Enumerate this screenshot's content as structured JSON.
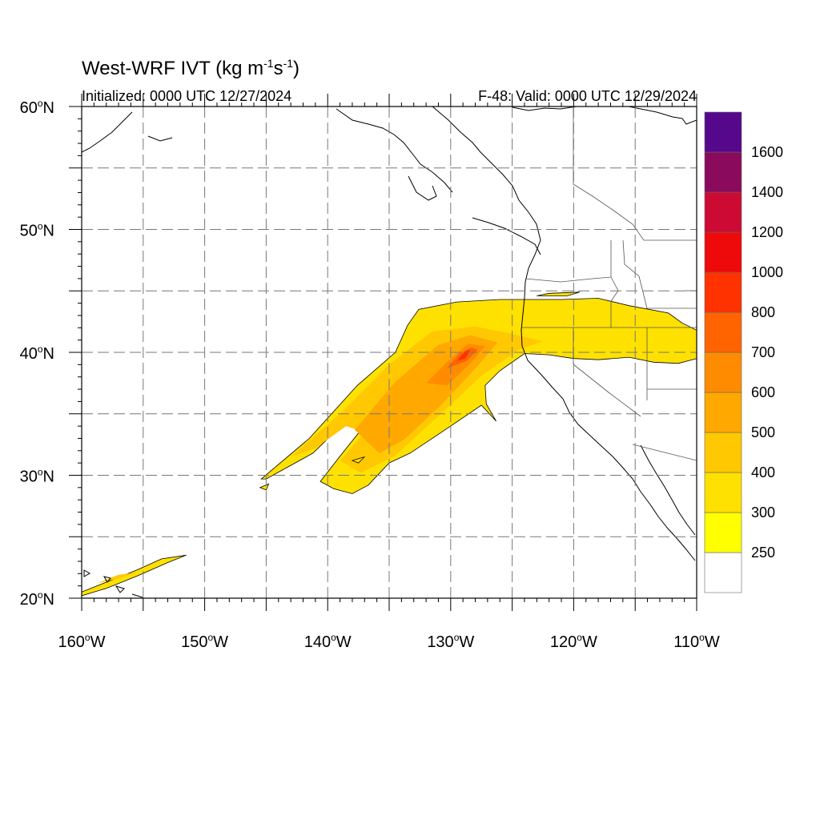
{
  "title": {
    "main": "West-WRF IVT (kg m",
    "exp1": "-1",
    "mid": "s",
    "exp2": "-1",
    "end": ")"
  },
  "initialized": "Initialized: 0000 UTC 12/27/2024",
  "valid": "F-48: Valid: 0000 UTC 12/29/2024",
  "lat_ticks": [
    {
      "value": 60,
      "label": "60"
    },
    {
      "value": 50,
      "label": "50"
    },
    {
      "value": 40,
      "label": "40"
    },
    {
      "value": 30,
      "label": "30"
    },
    {
      "value": 20,
      "label": "20"
    }
  ],
  "lon_ticks": [
    {
      "value": -160,
      "label": "160"
    },
    {
      "value": -150,
      "label": "150"
    },
    {
      "value": -140,
      "label": "140"
    },
    {
      "value": -130,
      "label": "130"
    },
    {
      "value": -120,
      "label": "120"
    },
    {
      "value": -110,
      "label": "110"
    }
  ],
  "lat_suffix": "N",
  "lon_suffix": "W",
  "degree_symbol": "o",
  "chart_data": {
    "type": "heatmap",
    "lon_range": [
      -160,
      -110
    ],
    "lat_range": [
      20,
      60
    ],
    "grid_spacing_deg": 5,
    "grid": true,
    "legend_placement": "right",
    "colorbar": {
      "levels": [
        250,
        300,
        400,
        500,
        600,
        700,
        800,
        1000,
        1200,
        1400,
        1600
      ],
      "labels": [
        "250",
        "300",
        "400",
        "500",
        "600",
        "700",
        "800",
        "1000",
        "1200",
        "1400",
        "1600"
      ],
      "colors": [
        "#ffffff",
        "#ffff00",
        "#ffe100",
        "#ffc800",
        "#ffa800",
        "#ff8c00",
        "#ff6400",
        "#ff3200",
        "#ee0a0a",
        "#cc0a33",
        "#8a0a5c",
        "#55088c"
      ]
    },
    "fill_regions": [
      {
        "name": "ar-300",
        "level": 300,
        "polygon": [
          [
            -145.4,
            29.7
          ],
          [
            -141.5,
            33
          ],
          [
            -137.6,
            37.3
          ],
          [
            -134.5,
            40
          ],
          [
            -133.5,
            42.2
          ],
          [
            -132.6,
            43.5
          ],
          [
            -129.5,
            44.1
          ],
          [
            -126,
            44.3
          ],
          [
            -121,
            44.3
          ],
          [
            -118,
            44.4
          ],
          [
            -115.5,
            43.8
          ],
          [
            -112.3,
            43.2
          ],
          [
            -111.2,
            42.4
          ],
          [
            -110,
            41.8
          ],
          [
            -110,
            39.5
          ],
          [
            -111.5,
            39.1
          ],
          [
            -113.5,
            39.2
          ],
          [
            -115.5,
            39.6
          ],
          [
            -118,
            39.4
          ],
          [
            -120,
            39.5
          ],
          [
            -122,
            39.8
          ],
          [
            -124,
            39.9
          ],
          [
            -126,
            38.5
          ],
          [
            -127.2,
            37.3
          ],
          [
            -127.1,
            35.8
          ],
          [
            -126.3,
            34.4
          ],
          [
            -127.5,
            35.7
          ],
          [
            -130,
            34
          ],
          [
            -133.3,
            31.8
          ],
          [
            -135,
            31
          ],
          [
            -136.7,
            29.2
          ],
          [
            -138,
            28.5
          ],
          [
            -139.5,
            28.9
          ],
          [
            -140.6,
            29.5
          ],
          [
            -138.8,
            31.8
          ],
          [
            -136.4,
            34.8
          ],
          [
            -137.6,
            35.3
          ],
          [
            -141.2,
            31.8
          ],
          [
            -145,
            29.7
          ]
        ]
      },
      {
        "name": "ar-400",
        "level": 400,
        "polygon": [
          [
            -143,
            31.5
          ],
          [
            -139,
            35
          ],
          [
            -135,
            39
          ],
          [
            -131.5,
            41.7
          ],
          [
            -128,
            42.1
          ],
          [
            -125,
            41.5
          ],
          [
            -122.5,
            40.9
          ],
          [
            -124.5,
            40.2
          ],
          [
            -127.5,
            38.1
          ],
          [
            -131,
            34.8
          ],
          [
            -134.5,
            31.6
          ],
          [
            -137.3,
            30.2
          ],
          [
            -139,
            31.2
          ],
          [
            -137,
            33.5
          ],
          [
            -138.5,
            34
          ],
          [
            -141,
            32.2
          ]
        ]
      },
      {
        "name": "ar-500",
        "level": 500,
        "polygon": [
          [
            -137.8,
            33.7
          ],
          [
            -134.5,
            37.6
          ],
          [
            -131,
            40.6
          ],
          [
            -128.4,
            41.4
          ],
          [
            -126.2,
            40.8
          ],
          [
            -127.8,
            38.9
          ],
          [
            -130.8,
            35.7
          ],
          [
            -133.8,
            32.9
          ],
          [
            -135.8,
            31.8
          ]
        ]
      },
      {
        "name": "ar-600",
        "level": 600,
        "polygon": [
          [
            -132,
            37.5
          ],
          [
            -130.3,
            39.2
          ],
          [
            -128.6,
            40.7
          ],
          [
            -127.2,
            40.5
          ],
          [
            -128.4,
            39.1
          ],
          [
            -130.3,
            37.3
          ]
        ]
      },
      {
        "name": "ar-700",
        "level": 700,
        "polygon": [
          [
            -130.3,
            38.7
          ],
          [
            -129.3,
            39.9
          ],
          [
            -128.3,
            40.4
          ],
          [
            -127.8,
            40.2
          ],
          [
            -128.7,
            39.3
          ]
        ]
      },
      {
        "name": "ar-800",
        "level": 800,
        "polygon": [
          [
            -129.5,
            39.3
          ],
          [
            -128.8,
            40.1
          ],
          [
            -128.4,
            40.2
          ],
          [
            -128.8,
            39.5
          ]
        ]
      },
      {
        "name": "hawaii-300",
        "level": 300,
        "polygon": [
          [
            -160,
            20.5
          ],
          [
            -158,
            21.3
          ],
          [
            -155.5,
            22.3
          ],
          [
            -153.5,
            23.2
          ],
          [
            -151.5,
            23.5
          ],
          [
            -153,
            22.9
          ],
          [
            -155.5,
            21.8
          ],
          [
            -158,
            20.8
          ],
          [
            -160,
            20.2
          ]
        ]
      },
      {
        "name": "hawaii-400",
        "level": 400,
        "polygon": [
          [
            -158.8,
            21.2
          ],
          [
            -157,
            21.6
          ],
          [
            -155.5,
            22.1
          ],
          [
            -157,
            21.9
          ]
        ]
      },
      {
        "name": "oregon-patch",
        "level": 300,
        "polygon": [
          [
            -123,
            44.6
          ],
          [
            -120.5,
            44.6
          ],
          [
            -119.5,
            44.9
          ],
          [
            -122,
            44.8
          ]
        ]
      },
      {
        "name": "dot-1",
        "level": 300,
        "polygon": [
          [
            -138,
            31.2
          ],
          [
            -137,
            31.5
          ],
          [
            -137.5,
            31
          ]
        ]
      },
      {
        "name": "dot-2",
        "level": 300,
        "polygon": [
          [
            -145.5,
            29
          ],
          [
            -144.8,
            29.3
          ],
          [
            -145,
            28.8
          ]
        ]
      }
    ]
  }
}
